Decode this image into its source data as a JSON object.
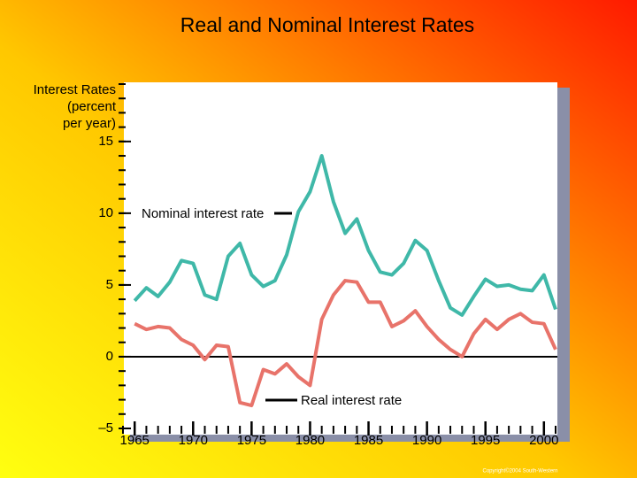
{
  "chart_data": {
    "type": "line",
    "title": "Real and Nominal Interest Rates",
    "y_label": [
      "Interest Rates",
      "(percent",
      "per year)"
    ],
    "x": [
      1965,
      1966,
      1967,
      1968,
      1969,
      1970,
      1971,
      1972,
      1973,
      1974,
      1975,
      1976,
      1977,
      1978,
      1979,
      1980,
      1981,
      1982,
      1983,
      1984,
      1985,
      1986,
      1987,
      1988,
      1989,
      1990,
      1991,
      1992,
      1993,
      1994,
      1995,
      1996,
      1997,
      1998,
      1999,
      2000,
      2001
    ],
    "series": [
      {
        "name": "Nominal interest rate",
        "color": "#3fb8a8",
        "values": [
          3.9,
          4.8,
          4.2,
          5.2,
          6.7,
          6.5,
          4.3,
          4.0,
          7.0,
          7.9,
          5.7,
          4.9,
          5.3,
          7.1,
          10.1,
          11.5,
          14.0,
          10.8,
          8.6,
          9.6,
          7.4,
          5.9,
          5.7,
          6.5,
          8.1,
          7.4,
          5.3,
          3.4,
          2.9,
          4.2,
          5.4,
          4.9,
          5.0,
          4.7,
          4.6,
          5.7,
          3.3
        ]
      },
      {
        "name": "Real interest rate",
        "color": "#e8736a",
        "values": [
          2.3,
          1.9,
          2.1,
          2.0,
          1.2,
          0.8,
          -0.2,
          0.8,
          0.7,
          -3.2,
          -3.4,
          -0.9,
          -1.2,
          -0.5,
          -1.4,
          -2.0,
          2.6,
          4.3,
          5.3,
          5.2,
          3.8,
          3.8,
          2.1,
          2.5,
          3.2,
          2.1,
          1.2,
          0.5,
          0.0,
          1.6,
          2.6,
          1.9,
          2.6,
          3.0,
          2.4,
          2.3,
          0.5
        ]
      }
    ],
    "xlim": [
      1964,
      2001
    ],
    "xticks": [
      1965,
      1970,
      1975,
      1980,
      1985,
      1990,
      1995,
      2000
    ],
    "ylim": [
      -5,
      19
    ],
    "yticks": [
      {
        "value": -5,
        "label": "–5"
      },
      0,
      5,
      10,
      15
    ],
    "footer": "Copyright©2004 South-Western"
  }
}
